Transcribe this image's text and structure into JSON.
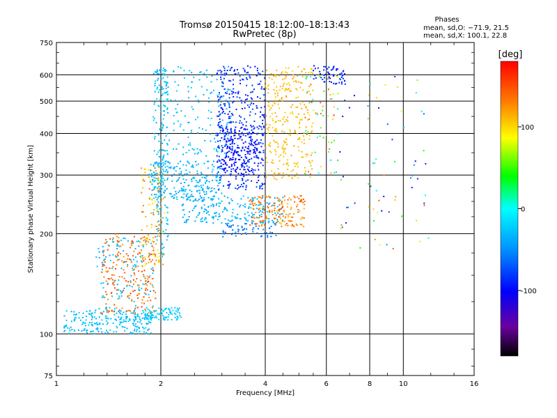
{
  "chart_data": {
    "type": "scatter",
    "title": "Tromsø 20150415 18:12:00–18:13:43",
    "subtitle": "RwPretec (8p)",
    "xlabel": "Frequency [MHz]",
    "ylabel": "Stationary phase Virtual Height [km]",
    "x_scale": "log",
    "y_scale": "log",
    "xlim": [
      1,
      16
    ],
    "ylim": [
      75,
      750
    ],
    "x_ticks": [
      1,
      2,
      4,
      6,
      8,
      10,
      16
    ],
    "x_tick_labels": [
      "1",
      "2",
      "4",
      "6",
      "8",
      "10",
      "16"
    ],
    "y_ticks": [
      75,
      100,
      200,
      300,
      400,
      500,
      600,
      750
    ],
    "y_tick_labels": [
      "75",
      "100",
      "200",
      "300",
      "400",
      "500",
      "600",
      "750"
    ],
    "grid": true,
    "stats": {
      "heading": "Phases",
      "line_o": "mean, sd,O: −71.9, 21.5",
      "line_x": "mean, sd,X: 100.1, 22.8"
    },
    "colorbar": {
      "label": "[deg]",
      "range": [
        -180,
        180
      ],
      "ticks": [
        100,
        0,
        -100
      ],
      "tick_labels": [
        "100",
        "0",
        "-100"
      ]
    },
    "clusters": [
      {
        "f": [
          1.05,
          1.9
        ],
        "h": [
          100,
          118
        ],
        "phase": [
          -40,
          -20
        ],
        "n": 220
      },
      {
        "f": [
          1.35,
          1.95
        ],
        "h": [
          115,
          200
        ],
        "phase": [
          120,
          160
        ],
        "n": 220
      },
      {
        "f": [
          1.3,
          1.9
        ],
        "h": [
          110,
          195
        ],
        "phase": [
          -40,
          -20
        ],
        "n": 130
      },
      {
        "f": [
          1.8,
          2.3
        ],
        "h": [
          110,
          120
        ],
        "phase": [
          -30,
          -15
        ],
        "n": 80
      },
      {
        "f": [
          1.75,
          2.05
        ],
        "h": [
          160,
          320
        ],
        "phase": [
          80,
          140
        ],
        "n": 120
      },
      {
        "f": [
          1.9,
          2.1
        ],
        "h": [
          170,
          640
        ],
        "phase": [
          -40,
          -15
        ],
        "n": 180
      },
      {
        "f": [
          1.85,
          3.0
        ],
        "h": [
          250,
          330
        ],
        "phase": [
          -45,
          -25
        ],
        "n": 260
      },
      {
        "f": [
          2.3,
          4.5
        ],
        "h": [
          215,
          260
        ],
        "phase": [
          -45,
          -25
        ],
        "n": 200
      },
      {
        "f": [
          2.0,
          3.2
        ],
        "h": [
          340,
          640
        ],
        "phase": [
          -40,
          -20
        ],
        "n": 160
      },
      {
        "f": [
          3.0,
          4.3
        ],
        "h": [
          195,
          215
        ],
        "phase": [
          -70,
          -50
        ],
        "n": 60
      },
      {
        "f": [
          2.9,
          4.0
        ],
        "h": [
          270,
          640
        ],
        "phase": [
          -100,
          -70
        ],
        "n": 420
      },
      {
        "f": [
          3.0,
          3.8
        ],
        "h": [
          300,
          420
        ],
        "phase": [
          -110,
          -90
        ],
        "n": 150
      },
      {
        "f": [
          4.0,
          5.5
        ],
        "h": [
          290,
          640
        ],
        "phase": [
          100,
          120
        ],
        "n": 280
      },
      {
        "f": [
          3.6,
          4.2
        ],
        "h": [
          210,
          260
        ],
        "phase": [
          110,
          150
        ],
        "n": 60
      },
      {
        "f": [
          4.2,
          5.2
        ],
        "h": [
          210,
          260
        ],
        "phase": [
          110,
          150
        ],
        "n": 100
      },
      {
        "f": [
          5.5,
          6.8
        ],
        "h": [
          560,
          640
        ],
        "phase": [
          -100,
          -80
        ],
        "n": 60
      },
      {
        "f": [
          5.2,
          6.5
        ],
        "h": [
          300,
          600
        ],
        "phase": [
          -20,
          160
        ],
        "n": 70
      },
      {
        "f": [
          6.5,
          12.0
        ],
        "h": [
          180,
          600
        ],
        "phase": [
          -120,
          150
        ],
        "n": 70
      }
    ]
  }
}
